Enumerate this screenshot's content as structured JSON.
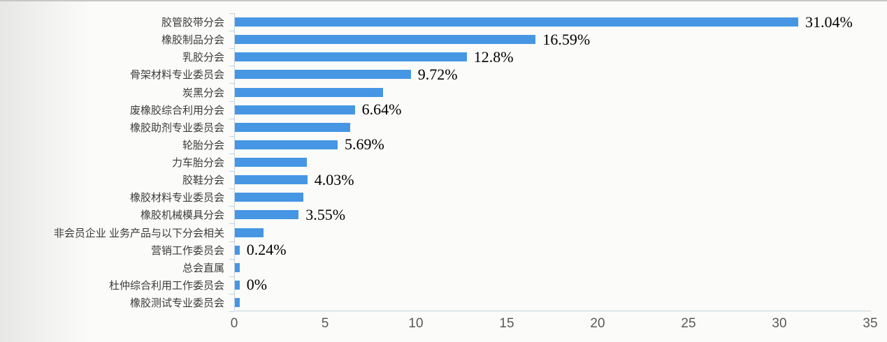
{
  "chart_data": {
    "type": "bar",
    "orientation": "horizontal",
    "title": "",
    "xlabel": "",
    "ylabel": "",
    "xlim": [
      0,
      35
    ],
    "x_ticks": [
      0,
      5,
      10,
      15,
      20,
      25,
      30,
      35
    ],
    "grid": false,
    "legend": false,
    "bar_color": "#4696e4",
    "categories": [
      "胶管胶带分会",
      "橡胶制品分会",
      "乳胶分会",
      "骨架材料专业委员会",
      "炭黑分会",
      "废橡胶综合利用分会",
      "橡胶助剂专业委员会",
      "轮胎分会",
      "力车胎分会",
      "胶鞋分会",
      "橡胶材料专业委员会",
      "橡胶机械模具分会",
      "非会员企业 业务产品与以下分会相关",
      "营销工作委员会",
      "总会直属",
      "杜仲综合利用工作委员会",
      "橡胶测试专业委员会"
    ],
    "values": [
      31.04,
      16.59,
      12.8,
      9.72,
      8.2,
      6.64,
      6.4,
      5.69,
      4.0,
      4.03,
      3.8,
      3.55,
      1.6,
      0.24,
      0.3,
      0,
      0.3
    ],
    "bar_lengths": [
      31.04,
      16.59,
      12.8,
      9.72,
      8.2,
      6.64,
      6.4,
      5.69,
      4.0,
      4.03,
      3.8,
      3.55,
      1.6,
      0.3,
      0.3,
      0.3,
      0.3
    ],
    "data_labels": [
      "31.04%",
      "16.59%",
      "12.8%",
      "9.72%",
      "",
      "6.64%",
      "",
      "5.69%",
      "",
      "4.03%",
      "",
      "3.55%",
      "",
      "0.24%",
      "",
      "0%",
      ""
    ]
  },
  "colors": {
    "bar": "#4696e4",
    "axis_line": "#c4d2dc",
    "axis_text": "#595959",
    "category_text": "#3b3b3b",
    "data_label_text": "#000000",
    "background": "#fbfbf9"
  }
}
